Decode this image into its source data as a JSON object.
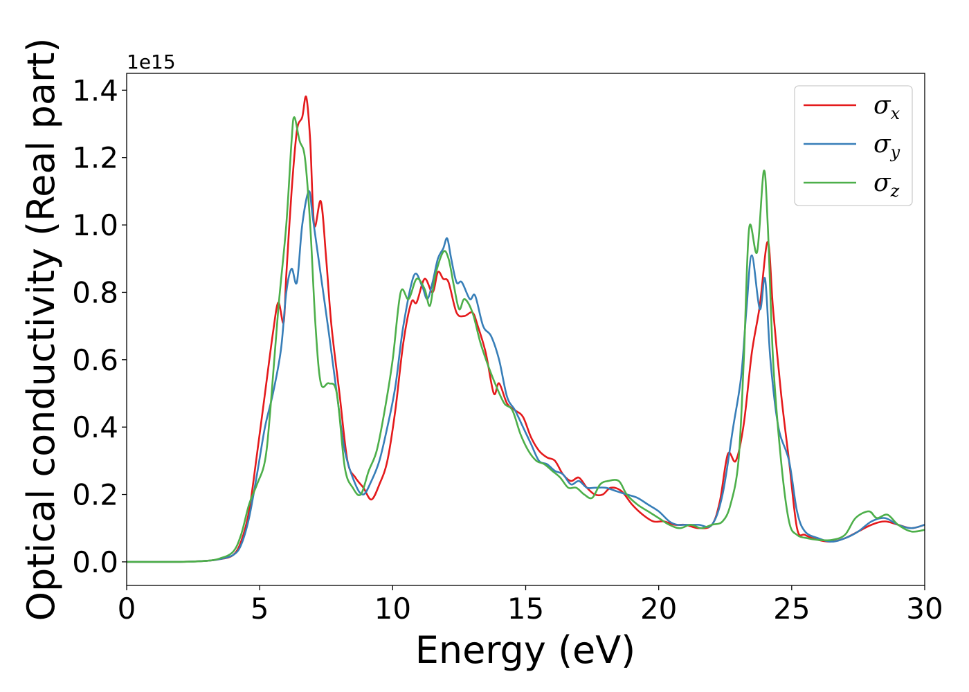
{
  "chart_data": {
    "type": "line",
    "title": "",
    "xlabel": "Energy (eV)",
    "ylabel": "Optical conductivity (Real part)",
    "y_offset_label": "1e15",
    "xlim": [
      0,
      30
    ],
    "ylim": [
      -0.07,
      1.45
    ],
    "x_ticks": [
      0,
      5,
      10,
      15,
      20,
      25,
      30
    ],
    "x_tick_labels": [
      "0",
      "5",
      "10",
      "15",
      "20",
      "25",
      "30"
    ],
    "y_ticks": [
      0.0,
      0.2,
      0.4,
      0.6,
      0.8,
      1.0,
      1.2,
      1.4
    ],
    "y_tick_labels": [
      "0.0",
      "0.2",
      "0.4",
      "0.6",
      "0.8",
      "1.0",
      "1.2",
      "1.4"
    ],
    "grid": false,
    "legend_position": "top-right",
    "series": [
      {
        "name": "σx",
        "symbol": "σ",
        "subscript": "x",
        "color": "#e41a1c",
        "points": [
          [
            0,
            0
          ],
          [
            2,
            0
          ],
          [
            3,
            0.003
          ],
          [
            3.5,
            0.008
          ],
          [
            4,
            0.02
          ],
          [
            4.3,
            0.06
          ],
          [
            4.6,
            0.15
          ],
          [
            4.9,
            0.32
          ],
          [
            5.2,
            0.5
          ],
          [
            5.5,
            0.68
          ],
          [
            5.7,
            0.77
          ],
          [
            5.9,
            0.71
          ],
          [
            6.0,
            0.85
          ],
          [
            6.2,
            1.1
          ],
          [
            6.4,
            1.28
          ],
          [
            6.6,
            1.32
          ],
          [
            6.75,
            1.38
          ],
          [
            6.9,
            1.25
          ],
          [
            7.05,
            1.0
          ],
          [
            7.3,
            1.07
          ],
          [
            7.5,
            0.9
          ],
          [
            7.7,
            0.7
          ],
          [
            8.0,
            0.5
          ],
          [
            8.3,
            0.3
          ],
          [
            8.6,
            0.25
          ],
          [
            8.9,
            0.22
          ],
          [
            9.2,
            0.185
          ],
          [
            9.5,
            0.23
          ],
          [
            9.8,
            0.3
          ],
          [
            10.1,
            0.45
          ],
          [
            10.4,
            0.65
          ],
          [
            10.7,
            0.77
          ],
          [
            10.9,
            0.77
          ],
          [
            11.2,
            0.84
          ],
          [
            11.5,
            0.8
          ],
          [
            11.7,
            0.86
          ],
          [
            11.9,
            0.84
          ],
          [
            12.1,
            0.83
          ],
          [
            12.4,
            0.74
          ],
          [
            12.7,
            0.73
          ],
          [
            13.0,
            0.74
          ],
          [
            13.2,
            0.7
          ],
          [
            13.5,
            0.62
          ],
          [
            13.8,
            0.5
          ],
          [
            14.0,
            0.53
          ],
          [
            14.3,
            0.47
          ],
          [
            14.6,
            0.45
          ],
          [
            14.9,
            0.43
          ],
          [
            15.2,
            0.37
          ],
          [
            15.5,
            0.33
          ],
          [
            15.8,
            0.31
          ],
          [
            16.1,
            0.3
          ],
          [
            16.4,
            0.26
          ],
          [
            16.7,
            0.24
          ],
          [
            17.0,
            0.25
          ],
          [
            17.3,
            0.22
          ],
          [
            17.6,
            0.2
          ],
          [
            17.9,
            0.2
          ],
          [
            18.2,
            0.22
          ],
          [
            18.6,
            0.21
          ],
          [
            19.0,
            0.17
          ],
          [
            19.4,
            0.14
          ],
          [
            19.8,
            0.12
          ],
          [
            20.2,
            0.12
          ],
          [
            20.6,
            0.11
          ],
          [
            21.0,
            0.11
          ],
          [
            21.5,
            0.1
          ],
          [
            22.0,
            0.11
          ],
          [
            22.3,
            0.18
          ],
          [
            22.6,
            0.32
          ],
          [
            22.9,
            0.3
          ],
          [
            23.2,
            0.41
          ],
          [
            23.5,
            0.62
          ],
          [
            23.8,
            0.76
          ],
          [
            24.1,
            0.95
          ],
          [
            24.3,
            0.75
          ],
          [
            24.6,
            0.5
          ],
          [
            24.9,
            0.3
          ],
          [
            25.2,
            0.1
          ],
          [
            25.5,
            0.08
          ],
          [
            26.0,
            0.065
          ],
          [
            26.5,
            0.06
          ],
          [
            27.0,
            0.07
          ],
          [
            27.5,
            0.09
          ],
          [
            28.0,
            0.11
          ],
          [
            28.5,
            0.12
          ],
          [
            29.0,
            0.11
          ],
          [
            29.5,
            0.1
          ],
          [
            30.0,
            0.11
          ]
        ]
      },
      {
        "name": "σy",
        "symbol": "σ",
        "subscript": "y",
        "color": "#377eb8",
        "points": [
          [
            0,
            0
          ],
          [
            2,
            0
          ],
          [
            3,
            0.003
          ],
          [
            3.5,
            0.008
          ],
          [
            4,
            0.02
          ],
          [
            4.3,
            0.05
          ],
          [
            4.6,
            0.13
          ],
          [
            4.9,
            0.26
          ],
          [
            5.2,
            0.4
          ],
          [
            5.5,
            0.5
          ],
          [
            5.8,
            0.63
          ],
          [
            6.0,
            0.8
          ],
          [
            6.2,
            0.87
          ],
          [
            6.4,
            0.83
          ],
          [
            6.6,
            1.0
          ],
          [
            6.85,
            1.1
          ],
          [
            7.0,
            1.02
          ],
          [
            7.3,
            0.85
          ],
          [
            7.6,
            0.68
          ],
          [
            7.9,
            0.5
          ],
          [
            8.2,
            0.33
          ],
          [
            8.6,
            0.23
          ],
          [
            8.9,
            0.2
          ],
          [
            9.2,
            0.24
          ],
          [
            9.5,
            0.3
          ],
          [
            9.8,
            0.4
          ],
          [
            10.1,
            0.52
          ],
          [
            10.4,
            0.7
          ],
          [
            10.8,
            0.85
          ],
          [
            11.1,
            0.82
          ],
          [
            11.3,
            0.78
          ],
          [
            11.5,
            0.83
          ],
          [
            11.7,
            0.9
          ],
          [
            11.9,
            0.93
          ],
          [
            12.05,
            0.96
          ],
          [
            12.2,
            0.9
          ],
          [
            12.4,
            0.83
          ],
          [
            12.6,
            0.83
          ],
          [
            12.9,
            0.78
          ],
          [
            13.1,
            0.79
          ],
          [
            13.4,
            0.7
          ],
          [
            13.7,
            0.67
          ],
          [
            14.0,
            0.6
          ],
          [
            14.3,
            0.49
          ],
          [
            14.6,
            0.45
          ],
          [
            14.9,
            0.4
          ],
          [
            15.2,
            0.35
          ],
          [
            15.5,
            0.3
          ],
          [
            15.8,
            0.29
          ],
          [
            16.1,
            0.27
          ],
          [
            16.4,
            0.26
          ],
          [
            16.7,
            0.23
          ],
          [
            17.0,
            0.24
          ],
          [
            17.3,
            0.22
          ],
          [
            17.6,
            0.22
          ],
          [
            18.0,
            0.22
          ],
          [
            18.4,
            0.21
          ],
          [
            18.8,
            0.2
          ],
          [
            19.2,
            0.19
          ],
          [
            19.6,
            0.17
          ],
          [
            20.0,
            0.15
          ],
          [
            20.4,
            0.12
          ],
          [
            20.7,
            0.11
          ],
          [
            21.0,
            0.11
          ],
          [
            21.5,
            0.11
          ],
          [
            22.0,
            0.11
          ],
          [
            22.4,
            0.2
          ],
          [
            22.8,
            0.4
          ],
          [
            23.1,
            0.55
          ],
          [
            23.3,
            0.75
          ],
          [
            23.5,
            0.91
          ],
          [
            23.8,
            0.75
          ],
          [
            24.0,
            0.84
          ],
          [
            24.2,
            0.6
          ],
          [
            24.5,
            0.4
          ],
          [
            24.9,
            0.3
          ],
          [
            25.2,
            0.15
          ],
          [
            25.5,
            0.09
          ],
          [
            26.0,
            0.07
          ],
          [
            26.5,
            0.06
          ],
          [
            27.0,
            0.07
          ],
          [
            27.5,
            0.09
          ],
          [
            28.0,
            0.12
          ],
          [
            28.5,
            0.13
          ],
          [
            29.0,
            0.11
          ],
          [
            29.5,
            0.1
          ],
          [
            30.0,
            0.11
          ]
        ]
      },
      {
        "name": "σz",
        "symbol": "σ",
        "subscript": "z",
        "color": "#4daf4a",
        "points": [
          [
            0,
            0
          ],
          [
            2,
            0
          ],
          [
            3,
            0.003
          ],
          [
            3.5,
            0.01
          ],
          [
            4,
            0.03
          ],
          [
            4.3,
            0.08
          ],
          [
            4.6,
            0.17
          ],
          [
            4.9,
            0.23
          ],
          [
            5.2,
            0.3
          ],
          [
            5.4,
            0.45
          ],
          [
            5.7,
            0.75
          ],
          [
            6.0,
            1.0
          ],
          [
            6.2,
            1.25
          ],
          [
            6.3,
            1.32
          ],
          [
            6.5,
            1.25
          ],
          [
            6.7,
            1.2
          ],
          [
            6.9,
            1.0
          ],
          [
            7.1,
            0.7
          ],
          [
            7.3,
            0.53
          ],
          [
            7.6,
            0.53
          ],
          [
            7.9,
            0.5
          ],
          [
            8.2,
            0.28
          ],
          [
            8.5,
            0.22
          ],
          [
            8.8,
            0.2
          ],
          [
            9.1,
            0.27
          ],
          [
            9.4,
            0.33
          ],
          [
            9.7,
            0.45
          ],
          [
            10.0,
            0.6
          ],
          [
            10.3,
            0.8
          ],
          [
            10.6,
            0.78
          ],
          [
            10.9,
            0.84
          ],
          [
            11.2,
            0.81
          ],
          [
            11.4,
            0.76
          ],
          [
            11.6,
            0.85
          ],
          [
            11.9,
            0.92
          ],
          [
            12.1,
            0.9
          ],
          [
            12.3,
            0.82
          ],
          [
            12.5,
            0.75
          ],
          [
            12.7,
            0.78
          ],
          [
            13.0,
            0.74
          ],
          [
            13.3,
            0.65
          ],
          [
            13.6,
            0.58
          ],
          [
            13.9,
            0.52
          ],
          [
            14.2,
            0.47
          ],
          [
            14.5,
            0.45
          ],
          [
            14.8,
            0.38
          ],
          [
            15.1,
            0.33
          ],
          [
            15.4,
            0.3
          ],
          [
            15.7,
            0.29
          ],
          [
            16.0,
            0.27
          ],
          [
            16.3,
            0.25
          ],
          [
            16.6,
            0.22
          ],
          [
            16.9,
            0.22
          ],
          [
            17.2,
            0.2
          ],
          [
            17.5,
            0.19
          ],
          [
            17.8,
            0.23
          ],
          [
            18.1,
            0.24
          ],
          [
            18.5,
            0.24
          ],
          [
            18.8,
            0.2
          ],
          [
            19.2,
            0.17
          ],
          [
            19.6,
            0.15
          ],
          [
            20.0,
            0.13
          ],
          [
            20.4,
            0.11
          ],
          [
            20.8,
            0.1
          ],
          [
            21.2,
            0.11
          ],
          [
            21.6,
            0.1
          ],
          [
            22.0,
            0.11
          ],
          [
            22.4,
            0.12
          ],
          [
            22.7,
            0.17
          ],
          [
            23.0,
            0.3
          ],
          [
            23.2,
            0.6
          ],
          [
            23.4,
            0.99
          ],
          [
            23.7,
            0.92
          ],
          [
            23.95,
            1.16
          ],
          [
            24.1,
            1.0
          ],
          [
            24.3,
            0.6
          ],
          [
            24.6,
            0.3
          ],
          [
            24.9,
            0.12
          ],
          [
            25.2,
            0.08
          ],
          [
            25.6,
            0.07
          ],
          [
            26.0,
            0.065
          ],
          [
            26.5,
            0.065
          ],
          [
            27.0,
            0.08
          ],
          [
            27.4,
            0.13
          ],
          [
            27.9,
            0.15
          ],
          [
            28.2,
            0.13
          ],
          [
            28.6,
            0.14
          ],
          [
            29.0,
            0.11
          ],
          [
            29.5,
            0.09
          ],
          [
            30.0,
            0.095
          ]
        ]
      }
    ]
  }
}
